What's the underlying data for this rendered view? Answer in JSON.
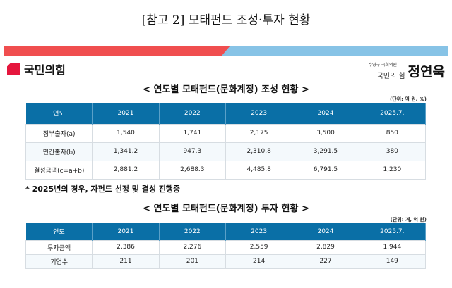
{
  "doc_title": "[참고 2] 모태펀드 조성·투자 현황",
  "colors": {
    "banner_red": "#f04e4f",
    "banner_blue": "#87c3e6",
    "header_blue": "#0a6fa6",
    "logo_red": "#e5163d"
  },
  "logo": {
    "party": "국민의힘",
    "icon": "party-logo-mark"
  },
  "member": {
    "district": "수영구 국회의원",
    "party": "국민의 힘",
    "name": "정연욱"
  },
  "table1": {
    "title": "< 연도별 모태펀드(문화계정) 조성 현황 >",
    "unit": "(단위: 억 원, %)",
    "headers": [
      "연도",
      "2021",
      "2022",
      "2023",
      "2024",
      "2025.7."
    ],
    "rows": [
      [
        "정부출자(a)",
        "1,540",
        "1,741",
        "2,175",
        "3,500",
        "850"
      ],
      [
        "민간출자(b)",
        "1,341.2",
        "947.3",
        "2,310.8",
        "3,291.5",
        "380"
      ],
      [
        "결성금액(c=a+b)",
        "2,881.2",
        "2,688.3",
        "4,485.8",
        "6,791.5",
        "1,230"
      ]
    ]
  },
  "note": "* 2025년의 경우, 자펀드 선정 및 결성 진행중",
  "table2": {
    "title": "< 연도별 모태펀드(문화계정) 투자 현황 >",
    "unit": "(단위: 개, 억 원)",
    "headers": [
      "연도",
      "2021",
      "2022",
      "2023",
      "2024",
      "2025.7."
    ],
    "rows": [
      [
        "투자금액",
        "2,386",
        "2,276",
        "2,559",
        "2,829",
        "1,944"
      ],
      [
        "기업수",
        "211",
        "201",
        "214",
        "227",
        "149"
      ]
    ]
  }
}
